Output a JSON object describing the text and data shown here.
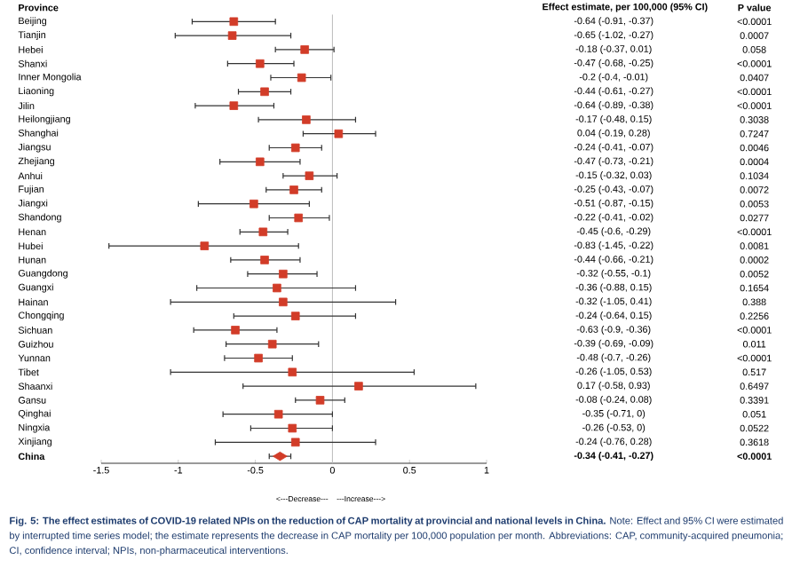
{
  "chart_data": {
    "type": "scatter",
    "orientation": "horizontal",
    "ylabel": "Province",
    "categories": [
      "Beijing",
      "Tianjin",
      "Hebei",
      "Shanxi",
      "Inner Mongolia",
      "Liaoning",
      "Jilin",
      "Heilongjiang",
      "Shanghai",
      "Jiangsu",
      "Zhejiang",
      "Anhui",
      "Fujian",
      "Jiangxi",
      "Shandong",
      "Henan",
      "Hubei",
      "Hunan",
      "Guangdong",
      "Guangxi",
      "Hainan",
      "Chongqing",
      "Sichuan",
      "Guizhou",
      "Yunnan",
      "Tibet",
      "Shaanxi",
      "Gansu",
      "Qinghai",
      "Ningxia",
      "Xinjiang",
      "**China**"
    ],
    "xlim": [
      -1.5,
      1
    ],
    "xticks": [
      -1.5,
      -1,
      -0.5,
      0,
      0.5,
      1
    ],
    "series": [
      {
        "color": "#d23c28",
        "marker": "square",
        "values": [
          -0.64,
          -0.65,
          -0.18,
          -0.47,
          -0.2,
          -0.44,
          -0.64,
          -0.17,
          0.04,
          -0.24,
          -0.47,
          -0.15,
          -0.25,
          -0.51,
          -0.22,
          -0.45,
          -0.83,
          -0.44,
          -0.32,
          -0.36,
          -0.32,
          -0.24,
          -0.63,
          -0.39,
          -0.48,
          -0.26,
          0.17,
          -0.08,
          -0.35,
          -0.26,
          -0.24,
          null
        ],
        "errors": [
          [
            -0.91,
            -0.37
          ],
          [
            -1.02,
            -0.27
          ],
          [
            -0.37,
            0.01
          ],
          [
            -0.68,
            -0.25
          ],
          [
            -0.4,
            -0.01
          ],
          [
            -0.61,
            -0.27
          ],
          [
            -0.89,
            -0.38
          ],
          [
            -0.48,
            0.15
          ],
          [
            -0.19,
            0.28
          ],
          [
            -0.41,
            -0.07
          ],
          [
            -0.73,
            -0.21
          ],
          [
            -0.32,
            0.03
          ],
          [
            -0.43,
            -0.07
          ],
          [
            -0.87,
            -0.15
          ],
          [
            -0.41,
            -0.02
          ],
          [
            -0.6,
            -0.29
          ],
          [
            -1.45,
            -0.22
          ],
          [
            -0.66,
            -0.21
          ],
          [
            -0.55,
            -0.1
          ],
          [
            -0.88,
            0.15
          ],
          [
            -1.05,
            0.41
          ],
          [
            -0.64,
            0.15
          ],
          [
            -0.9,
            -0.36
          ],
          [
            -0.69,
            -0.09
          ],
          [
            -0.7,
            -0.26
          ],
          [
            -1.05,
            0.53
          ],
          [
            -0.58,
            0.93
          ],
          [
            -0.24,
            0.08
          ],
          [
            -0.71,
            0
          ],
          [
            -0.53,
            0
          ],
          [
            -0.76,
            0.28
          ],
          null
        ],
        "name": null
      },
      {
        "color": "#d23c28",
        "marker": "diamond",
        "values": [
          null,
          null,
          null,
          null,
          null,
          null,
          null,
          null,
          null,
          null,
          null,
          null,
          null,
          null,
          null,
          null,
          null,
          null,
          null,
          null,
          null,
          null,
          null,
          null,
          null,
          null,
          null,
          null,
          null,
          null,
          null,
          -0.34
        ],
        "errors": [
          null,
          null,
          null,
          null,
          null,
          null,
          null,
          null,
          null,
          null,
          null,
          null,
          null,
          null,
          null,
          null,
          null,
          null,
          null,
          null,
          null,
          null,
          null,
          null,
          null,
          null,
          null,
          null,
          null,
          null,
          null,
          [
            -0.41,
            -0.27
          ]
        ]
      }
    ],
    "ref_lines": [
      {
        "axis": "x",
        "value": 0,
        "color": "#bbbbbb"
      }
    ],
    "annotations": [
      "**Effect estimate, per 100,000 (95% CI)**",
      "**P value**",
      "-0.64 (-0.91, -0.37)",
      "-0.65 (-1.02, -0.27)",
      "-0.18 (-0.37, 0.01)",
      "-0.47 (-0.68, -0.25)",
      "-0.2 (-0.4, -0.01)",
      "-0.44 (-0.61, -0.27)",
      "-0.64 (-0.89, -0.38)",
      "-0.17 (-0.48, 0.15)",
      "0.04 (-0.19, 0.28)",
      "-0.24 (-0.41, -0.07)",
      "-0.47 (-0.73, -0.21)",
      "-0.15 (-0.32, 0.03)",
      "-0.25 (-0.43, -0.07)",
      "-0.51 (-0.87, -0.15)",
      "-0.22 (-0.41, -0.02)",
      "-0.45 (-0.6, -0.29)",
      "-0.83 (-1.45, -0.22)",
      "-0.44 (-0.66, -0.21)",
      "-0.32 (-0.55, -0.1)",
      "-0.36 (-0.88, 0.15)",
      "-0.32 (-1.05, 0.41)",
      "-0.24 (-0.64, 0.15)",
      "-0.63 (-0.9, -0.36)",
      "-0.39 (-0.69, -0.09)",
      "-0.48 (-0.7, -0.26)",
      "-0.26 (-1.05, 0.53)",
      "0.17 (-0.58, 0.93)",
      "-0.08 (-0.24, 0.08)",
      "-0.35 (-0.71, 0)",
      "-0.26 (-0.53, 0)",
      "-0.24 (-0.76, 0.28)",
      "**-0.34 (-0.41, -0.27)**",
      "<0.0001",
      "0.0007",
      "0.058",
      "<0.0001",
      "0.0407",
      "<0.0001",
      "<0.0001",
      "0.3038",
      "0.7247",
      "0.0046",
      "0.0004",
      "0.1034",
      "0.0072",
      "0.0053",
      "0.0277",
      "<0.0001",
      "0.0081",
      "0.0002",
      "0.0052",
      "0.1654",
      "0.388",
      "0.2256",
      "<0.0001",
      "0.011",
      "<0.0001",
      "0.517",
      "0.6497",
      "0.3391",
      "0.051",
      "0.0522",
      "0.3618",
      "**<0.0001**",
      "<---Decrease---",
      "---Increase--->",
      "**Fig. 5: The effect estimates of COVID-19 related NPIs on the reduction of CAP mortality at provincial and national levels in China.** Note: Effect and 95% CI were estimated by interrupted time series model; the estimate represents the decrease in CAP mortality per 100,000 population per month. Abbreviations: CAP, community-acquired pneumonia; CI, confidence interval; NPIs, non-pharmaceutical interventions."
    ]
  }
}
